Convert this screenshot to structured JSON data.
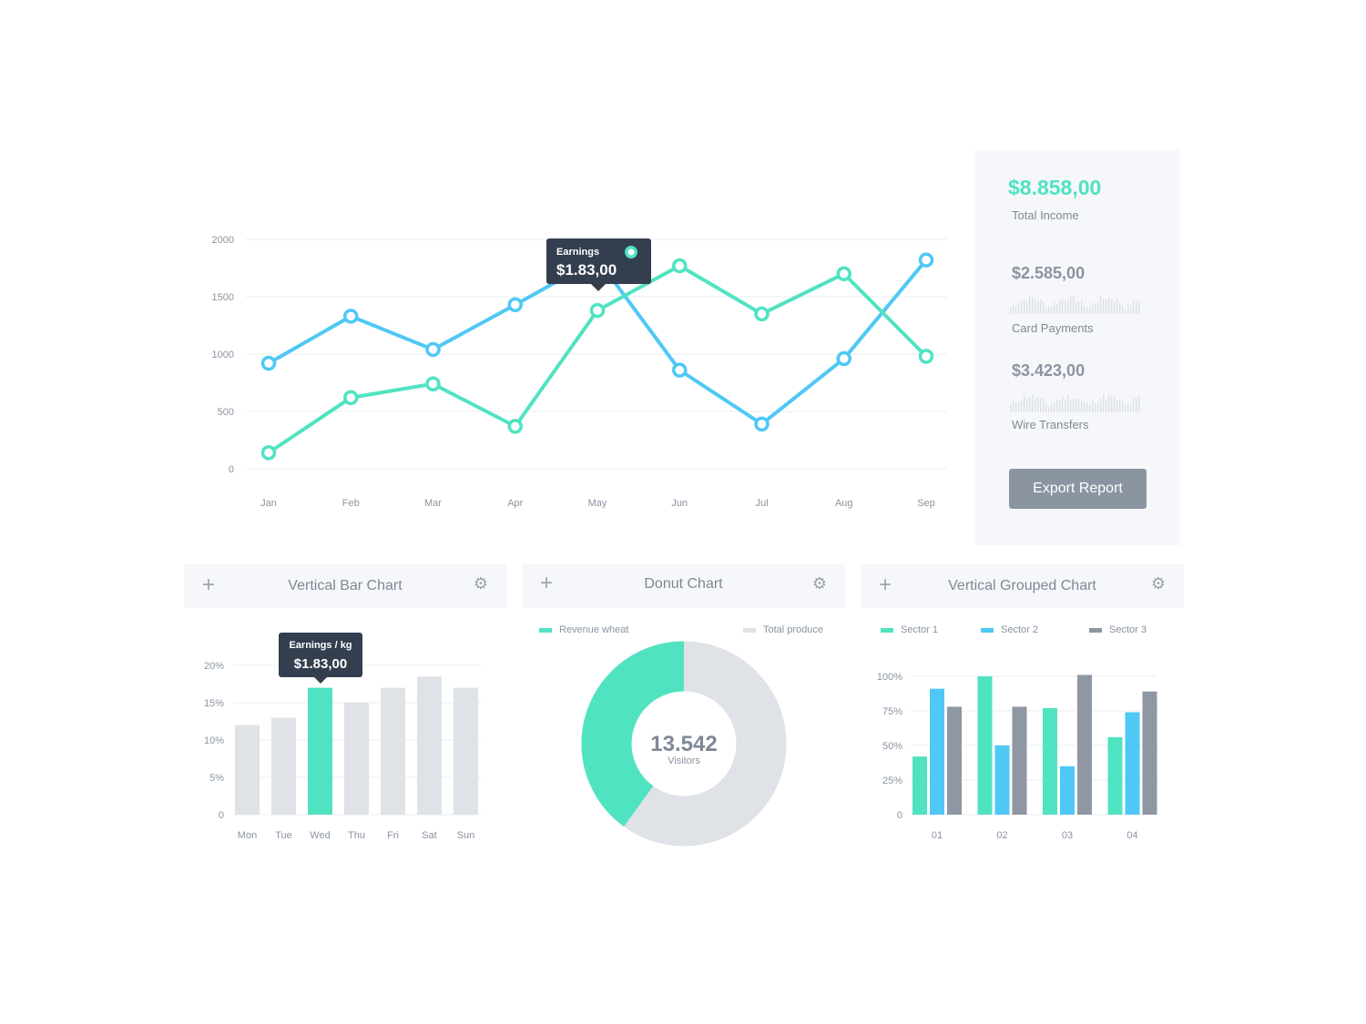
{
  "colors": {
    "teal": "#50e3c2",
    "blue": "#4fc8f5",
    "gray": "#8e97a3",
    "lightgray": "#dfe2e6",
    "grid": "#e9ecf0",
    "tooltip": "#333e4e"
  },
  "summary": {
    "total_value": "$8.858,00",
    "total_label": "Total Income",
    "card_value": "$2.585,00",
    "card_label": "Card Payments",
    "wire_value": "$3.423,00",
    "wire_label": "Wire Transfers",
    "export_label": "Export Report"
  },
  "cards": {
    "bar": {
      "plus": "+",
      "title": "Vertical Bar Chart",
      "gear": "⚙"
    },
    "donut": {
      "plus": "+",
      "title": "Donut Chart",
      "gear": "⚙"
    },
    "grouped": {
      "plus": "+",
      "title": "Vertical Grouped Chart",
      "gear": "⚙"
    }
  },
  "chart_data": [
    {
      "type": "line",
      "categories": [
        "Jan",
        "Feb",
        "Mar",
        "Apr",
        "May",
        "Jun",
        "Jul",
        "Aug",
        "Sep"
      ],
      "yticks": [
        0,
        500,
        1000,
        1500,
        2000
      ],
      "ylim": [
        0,
        2000
      ],
      "series": [
        {
          "color": "#4fc8f5",
          "values": [
            920,
            1330,
            1040,
            1430,
            1830,
            860,
            390,
            960,
            1820
          ]
        },
        {
          "color": "#50e3c2",
          "values": [
            140,
            620,
            740,
            370,
            1380,
            1770,
            1350,
            1700,
            980
          ]
        }
      ],
      "tooltip": {
        "label": "Earnings",
        "value": "$1.83,00",
        "category": "May"
      }
    },
    {
      "type": "bar",
      "categories": [
        "Mon",
        "Tue",
        "Wed",
        "Thu",
        "Fri",
        "Sat",
        "Sun"
      ],
      "values": [
        12,
        13,
        17,
        15,
        17,
        18.5,
        17
      ],
      "highlight": "Wed",
      "yticks": [
        "0",
        "5%",
        "10%",
        "15%",
        "20%"
      ],
      "ylim": [
        0,
        20
      ],
      "tooltip": {
        "label": "Earnings / kg",
        "value": "$1.83,00"
      }
    },
    {
      "type": "pie",
      "legend": [
        "Revenue wheat",
        "Total produce"
      ],
      "values": [
        40,
        60
      ],
      "center_value": "13.542",
      "center_label": "Visitors"
    },
    {
      "type": "bar",
      "categories": [
        "01",
        "02",
        "03",
        "04"
      ],
      "legend": [
        "Sector 1",
        "Sector 2",
        "Sector 3"
      ],
      "yticks": [
        "0",
        "25%",
        "50%",
        "75%",
        "100%"
      ],
      "ylim": [
        0,
        100
      ],
      "series": [
        {
          "name": "Sector 1",
          "color": "#50e3c2",
          "values": [
            42,
            100,
            77,
            56
          ]
        },
        {
          "name": "Sector 2",
          "color": "#4fc8f5",
          "values": [
            91,
            50,
            35,
            74
          ]
        },
        {
          "name": "Sector 3",
          "color": "#8e97a3",
          "values": [
            78,
            78,
            101,
            89
          ]
        }
      ]
    }
  ]
}
